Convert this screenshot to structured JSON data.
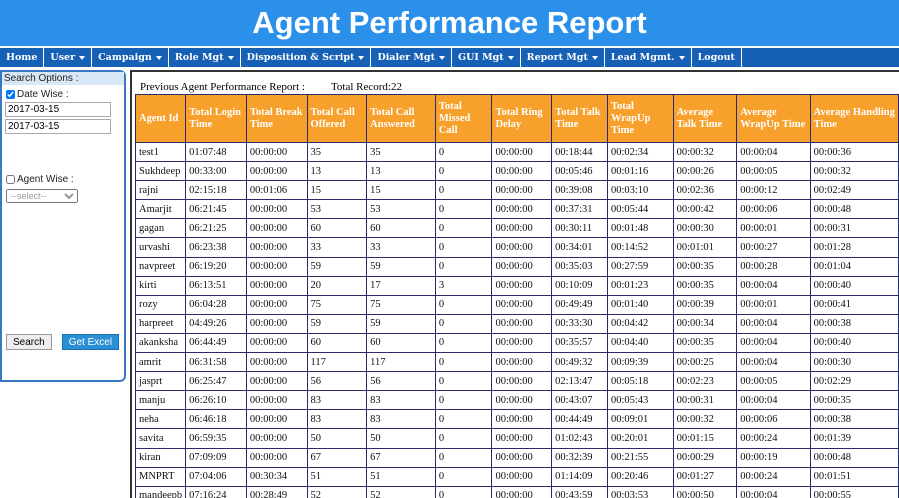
{
  "header": {
    "title": "Agent Performance Report"
  },
  "nav": [
    "Home",
    "User",
    "Campaign",
    "Role Mgt",
    "Disposition & Script",
    "Dialer Mgt",
    "GUI Mgt",
    "Report Mgt",
    "Lead Mgmt.",
    "Logout"
  ],
  "nav_dropdown": [
    false,
    true,
    true,
    true,
    true,
    true,
    true,
    true,
    true,
    false
  ],
  "sidebar": {
    "title": "Search Options :",
    "date_wise": {
      "label": "Date Wise :",
      "checked": true
    },
    "from_date": "2017-03-15",
    "to_date": "2017-03-15",
    "agent_wise": {
      "label": "Agent Wise :",
      "checked": false
    },
    "agent_select": "--select--",
    "search_button": "Search",
    "excel_button": "Get Excel"
  },
  "report": {
    "caption": "Previous Agent Performance Report :",
    "total": "Total Record:22"
  },
  "table": {
    "columns": [
      "Agent Id",
      "Total Login Time",
      "Total Break Time",
      "Total Call Offered",
      "Total Call Answered",
      "Total Missed Call",
      "Total Ring Delay",
      "Total Talk Time",
      "Total WrapUp Time",
      "Average Talk Time",
      "Average WrapUp Time",
      "Average Handling Time"
    ],
    "rows": [
      [
        "test1",
        "01:07:48",
        "00:00:00",
        35,
        35,
        0,
        "00:00:00",
        "00:18:44",
        "00:02:34",
        "00:00:32",
        "00:00:04",
        "00:00:36"
      ],
      [
        "Sukhdeep",
        "00:33:00",
        "00:00:00",
        13,
        13,
        0,
        "00:00:00",
        "00:05:46",
        "00:01:16",
        "00:00:26",
        "00:00:05",
        "00:00:32"
      ],
      [
        "rajni",
        "02:15:18",
        "00:01:06",
        15,
        15,
        0,
        "00:00:00",
        "00:39:08",
        "00:03:10",
        "00:02:36",
        "00:00:12",
        "00:02:49"
      ],
      [
        "Amarjit",
        "06:21:45",
        "00:00:00",
        53,
        53,
        0,
        "00:00:00",
        "00:37:31",
        "00:05:44",
        "00:00:42",
        "00:00:06",
        "00:00:48"
      ],
      [
        "gagan",
        "06:21:25",
        "00:00:00",
        60,
        60,
        0,
        "00:00:00",
        "00:30:11",
        "00:01:48",
        "00:00:30",
        "00:00:01",
        "00:00:31"
      ],
      [
        "urvashi",
        "06:23:38",
        "00:00:00",
        33,
        33,
        0,
        "00:00:00",
        "00:34:01",
        "00:14:52",
        "00:01:01",
        "00:00:27",
        "00:01:28"
      ],
      [
        "navpreet",
        "06:19:20",
        "00:00:00",
        59,
        59,
        0,
        "00:00:00",
        "00:35:03",
        "00:27:59",
        "00:00:35",
        "00:00:28",
        "00:01:04"
      ],
      [
        "kirti",
        "06:13:51",
        "00:00:00",
        20,
        17,
        3,
        "00:00:00",
        "00:10:09",
        "00:01:23",
        "00:00:35",
        "00:00:04",
        "00:00:40"
      ],
      [
        "rozy",
        "06:04:28",
        "00:00:00",
        75,
        75,
        0,
        "00:00:00",
        "00:49:49",
        "00:01:40",
        "00:00:39",
        "00:00:01",
        "00:00:41"
      ],
      [
        "harpreet",
        "04:49:26",
        "00:00:00",
        59,
        59,
        0,
        "00:00:00",
        "00:33:30",
        "00:04:42",
        "00:00:34",
        "00:00:04",
        "00:00:38"
      ],
      [
        "akanksha",
        "06:44:49",
        "00:00:00",
        60,
        60,
        0,
        "00:00:00",
        "00:35:57",
        "00:04:40",
        "00:00:35",
        "00:00:04",
        "00:00:40"
      ],
      [
        "amrit",
        "06:31:58",
        "00:00:00",
        117,
        117,
        0,
        "00:00:00",
        "00:49:32",
        "00:09:39",
        "00:00:25",
        "00:00:04",
        "00:00:30"
      ],
      [
        "jasprt",
        "06:25:47",
        "00:00:00",
        56,
        56,
        0,
        "00:00:00",
        "02:13:47",
        "00:05:18",
        "00:02:23",
        "00:00:05",
        "00:02:29"
      ],
      [
        "manju",
        "06:26:10",
        "00:00:00",
        83,
        83,
        0,
        "00:00:00",
        "00:43:07",
        "00:05:43",
        "00:00:31",
        "00:00:04",
        "00:00:35"
      ],
      [
        "neha",
        "06:46:18",
        "00:00:00",
        83,
        83,
        0,
        "00:00:00",
        "00:44:49",
        "00:09:01",
        "00:00:32",
        "00:00:06",
        "00:00:38"
      ],
      [
        "savita",
        "06:59:35",
        "00:00:00",
        50,
        50,
        0,
        "00:00:00",
        "01:02:43",
        "00:20:01",
        "00:01:15",
        "00:00:24",
        "00:01:39"
      ],
      [
        "kiran",
        "07:09:09",
        "00:00:00",
        67,
        67,
        0,
        "00:00:00",
        "00:32:39",
        "00:21:55",
        "00:00:29",
        "00:00:19",
        "00:00:48"
      ],
      [
        "MNPRT",
        "07:04:06",
        "00:30:34",
        51,
        51,
        0,
        "00:00:00",
        "01:14:09",
        "00:20:46",
        "00:01:27",
        "00:00:24",
        "00:01:51"
      ],
      [
        "mandeepb",
        "07:16:24",
        "00:28:49",
        52,
        52,
        0,
        "00:00:00",
        "00:43:59",
        "00:03:53",
        "00:00:50",
        "00:00:04",
        "00:00:55"
      ]
    ]
  }
}
